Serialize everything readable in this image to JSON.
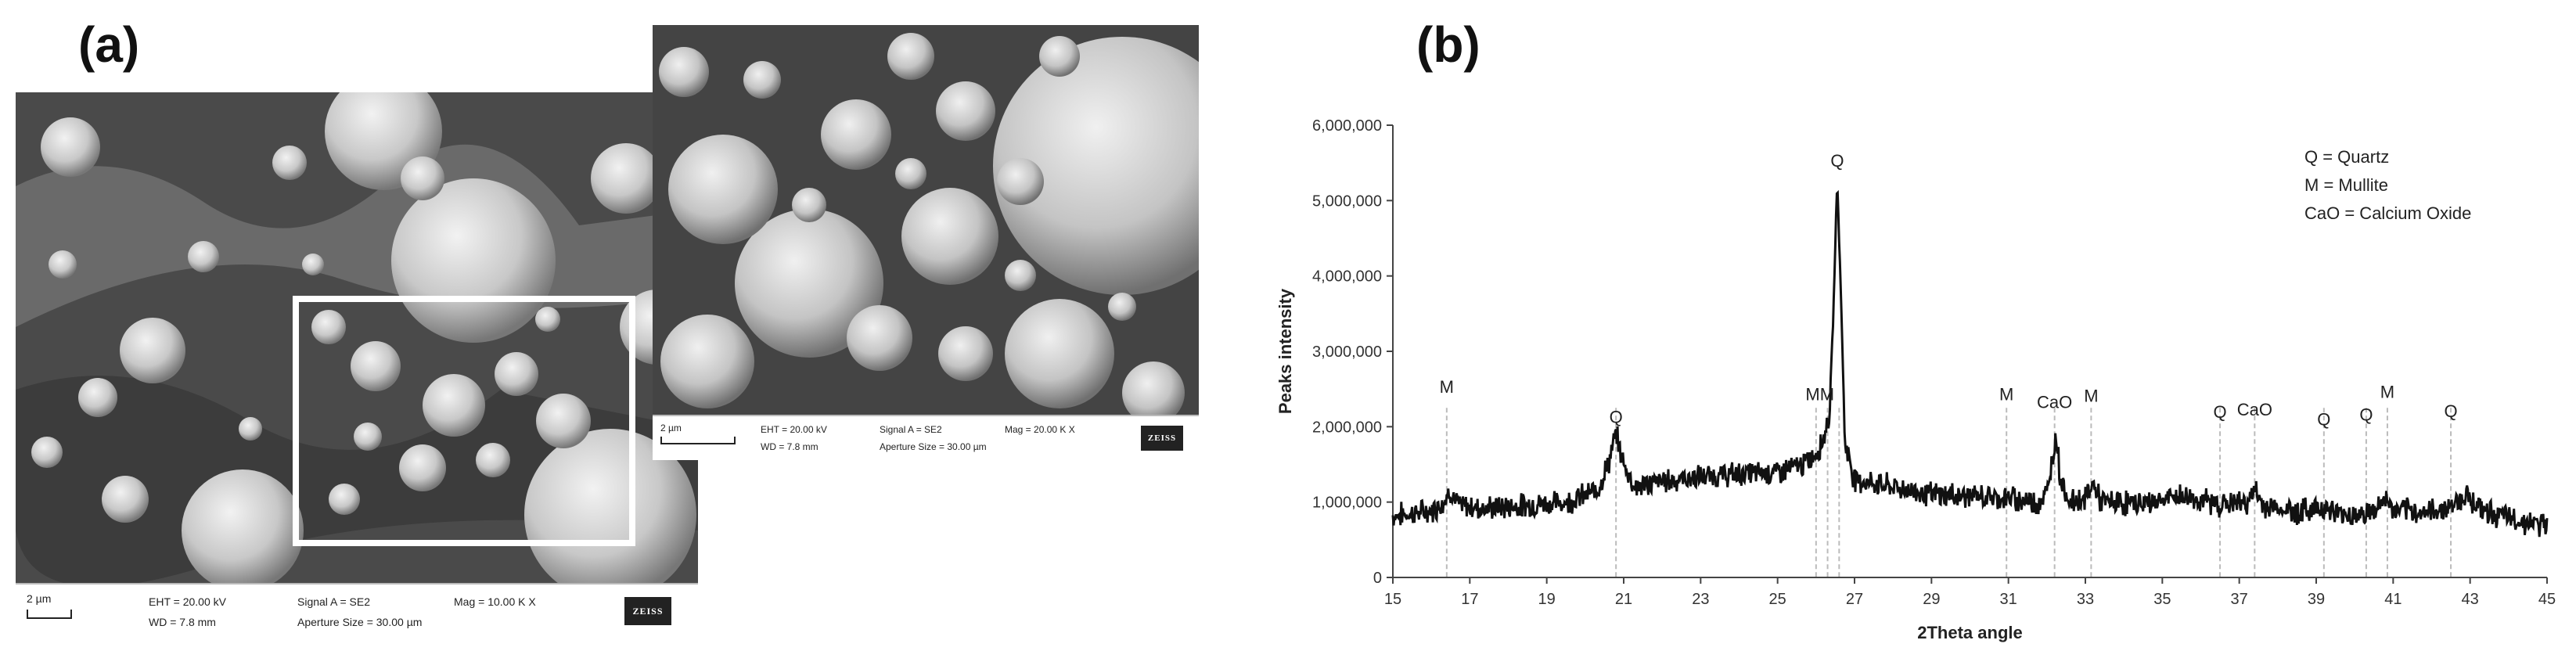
{
  "panel_a": {
    "label": "(a)",
    "main_image": {
      "scale": "2 µm",
      "eht": "EHT = 20.00 kV",
      "wd": "WD = 7.8 mm",
      "signal": "Signal A = SE2",
      "aperture": "Aperture Size = 30.00 µm",
      "mag": "Mag =  10.00 K X",
      "brand": "ZEISS"
    },
    "inset_image": {
      "scale": "2 µm",
      "eht": "EHT = 20.00 kV",
      "wd": "WD = 7.8 mm",
      "signal": "Signal A = SE2",
      "aperture": "Aperture Size = 30.00 µm",
      "mag": "Mag =  20.00 K X",
      "brand": "ZEISS"
    }
  },
  "panel_b": {
    "label": "(b)"
  },
  "chart_data": {
    "type": "line",
    "xlabel": "2Theta angle",
    "ylabel": "Peaks intensity",
    "xlim": [
      15,
      45
    ],
    "ylim": [
      0,
      6000000
    ],
    "x_ticks": [
      "15",
      "17",
      "19",
      "21",
      "23",
      "25",
      "27",
      "29",
      "31",
      "33",
      "35",
      "37",
      "39",
      "41",
      "43",
      "45"
    ],
    "y_ticks": [
      "0",
      "1,000,000",
      "2,000,000",
      "3,000,000",
      "4,000,000",
      "5,000,000",
      "6,000,000"
    ],
    "legend": [
      "Q = Quartz",
      "M = Mullite",
      "CaO = Calcium Oxide"
    ],
    "legend_position": "top-right",
    "line_color": "#111111",
    "peak_line_color": "#bbbbbb",
    "profile_points": [
      [
        15.0,
        820000
      ],
      [
        16.0,
        880000
      ],
      [
        16.3,
        1000000
      ],
      [
        16.5,
        1150000
      ],
      [
        16.7,
        950000
      ],
      [
        17.5,
        920000
      ],
      [
        18.5,
        960000
      ],
      [
        19.5,
        1000000
      ],
      [
        20.3,
        1150000
      ],
      [
        20.6,
        1500000
      ],
      [
        20.8,
        1900000
      ],
      [
        21.0,
        1500000
      ],
      [
        21.3,
        1200000
      ],
      [
        22.0,
        1280000
      ],
      [
        23.0,
        1330000
      ],
      [
        24.0,
        1370000
      ],
      [
        25.0,
        1400000
      ],
      [
        25.7,
        1500000
      ],
      [
        26.0,
        1650000
      ],
      [
        26.2,
        1850000
      ],
      [
        26.35,
        2200000
      ],
      [
        26.45,
        3500000
      ],
      [
        26.55,
        5300000
      ],
      [
        26.65,
        3700000
      ],
      [
        26.75,
        1800000
      ],
      [
        27.0,
        1300000
      ],
      [
        28.0,
        1200000
      ],
      [
        29.0,
        1100000
      ],
      [
        30.0,
        1080000
      ],
      [
        31.0,
        1050000
      ],
      [
        31.8,
        1000000
      ],
      [
        32.0,
        1100000
      ],
      [
        32.15,
        1600000
      ],
      [
        32.25,
        1900000
      ],
      [
        32.35,
        1300000
      ],
      [
        32.6,
        1000000
      ],
      [
        33.0,
        1050000
      ],
      [
        33.2,
        1250000
      ],
      [
        33.4,
        1000000
      ],
      [
        34.5,
        980000
      ],
      [
        35.5,
        1080000
      ],
      [
        36.5,
        970000
      ],
      [
        37.2,
        1000000
      ],
      [
        37.4,
        1150000
      ],
      [
        37.6,
        960000
      ],
      [
        38.5,
        870000
      ],
      [
        39.2,
        940000
      ],
      [
        39.5,
        850000
      ],
      [
        40.0,
        830000
      ],
      [
        40.5,
        870000
      ],
      [
        40.8,
        1050000
      ],
      [
        41.0,
        880000
      ],
      [
        42.0,
        870000
      ],
      [
        42.5,
        950000
      ],
      [
        42.9,
        1100000
      ],
      [
        43.3,
        900000
      ],
      [
        44.0,
        780000
      ],
      [
        45.0,
        680000
      ]
    ],
    "annotations": [
      {
        "label": "M",
        "x": 16.4,
        "y": 2450000
      },
      {
        "label": "Q",
        "x": 20.8,
        "y": 2050000
      },
      {
        "label": "MM",
        "x": 26.1,
        "y": 2350000
      },
      {
        "label": "Q",
        "x": 26.55,
        "y": 5450000
      },
      {
        "label": "M",
        "x": 30.95,
        "y": 2350000
      },
      {
        "label": "CaO",
        "x": 32.2,
        "y": 2250000
      },
      {
        "label": "M",
        "x": 33.15,
        "y": 2330000
      },
      {
        "label": "Q",
        "x": 36.5,
        "y": 2120000
      },
      {
        "label": "CaO",
        "x": 37.4,
        "y": 2150000
      },
      {
        "label": "Q",
        "x": 39.2,
        "y": 2020000
      },
      {
        "label": "Q",
        "x": 40.3,
        "y": 2080000
      },
      {
        "label": "M",
        "x": 40.85,
        "y": 2380000
      },
      {
        "label": "Q",
        "x": 42.5,
        "y": 2130000
      }
    ],
    "peak_lines": [
      16.4,
      20.8,
      26.0,
      26.3,
      26.6,
      30.95,
      32.2,
      33.15,
      36.5,
      37.4,
      39.2,
      40.3,
      40.85,
      42.5
    ]
  }
}
